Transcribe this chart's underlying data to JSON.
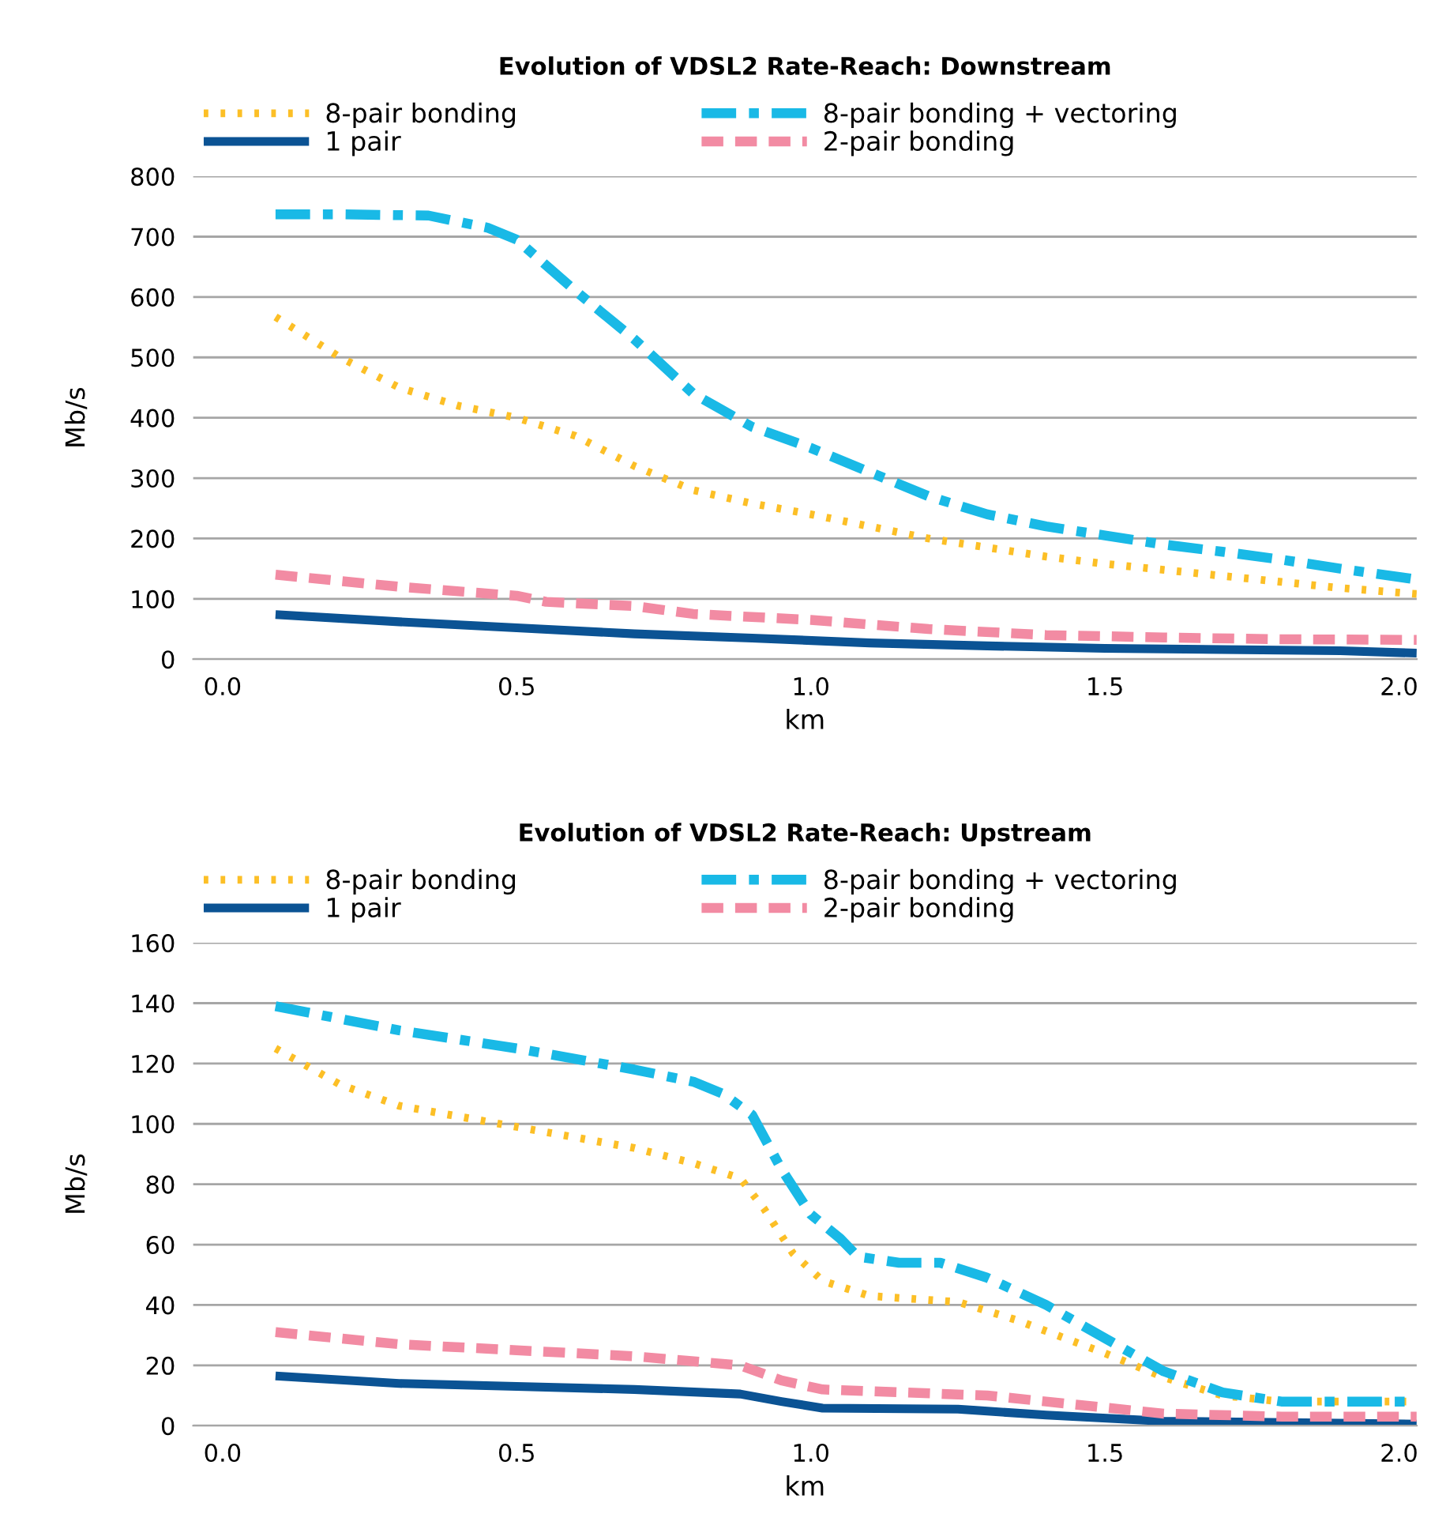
{
  "chart_data": [
    {
      "type": "line",
      "title": "Evolution of VDSL2 Rate-Reach: Downstream",
      "xlabel": "km",
      "ylabel": "Mb/s",
      "xlim": [
        -0.05,
        2.03
      ],
      "xticks": [
        {
          "value": 0,
          "label": "0.0"
        },
        {
          "value": 0.5,
          "label": "0.5"
        },
        {
          "value": 1,
          "label": "1.0"
        },
        {
          "value": 1.5,
          "label": "1.5"
        },
        {
          "value": 2,
          "label": "2.0"
        }
      ],
      "ylim": [
        0,
        800
      ],
      "yticks": [
        0,
        100,
        200,
        300,
        400,
        500,
        600,
        700,
        800
      ],
      "grid": "y",
      "legend": "top",
      "series": [
        {
          "name": "8-pair bonding",
          "color": "#fcbf26",
          "line_style": "dotted",
          "x": [
            0.09,
            0.2,
            0.3,
            0.4,
            0.5,
            0.6,
            0.7,
            0.8,
            0.9,
            1.0,
            1.1,
            1.2,
            1.3,
            1.4,
            1.5,
            1.6,
            1.7,
            1.8,
            1.9,
            2.03
          ],
          "values": [
            567,
            500,
            450,
            420,
            400,
            370,
            320,
            280,
            258,
            240,
            220,
            200,
            185,
            170,
            158,
            148,
            138,
            128,
            118,
            108
          ]
        },
        {
          "name": "8-pair bonding + vectoring",
          "color": "#19b9e6",
          "line_style": "dashdot",
          "x": [
            0.09,
            0.2,
            0.35,
            0.45,
            0.5,
            0.6,
            0.7,
            0.8,
            0.9,
            1.0,
            1.1,
            1.2,
            1.3,
            1.4,
            1.5,
            1.6,
            1.7,
            1.8,
            1.9,
            2.03
          ],
          "values": [
            737,
            737,
            735,
            715,
            695,
            610,
            530,
            440,
            385,
            350,
            310,
            270,
            240,
            220,
            205,
            190,
            178,
            165,
            150,
            132
          ]
        },
        {
          "name": "1 pair",
          "color": "#0b5394",
          "line_style": "solid",
          "x": [
            0.09,
            0.3,
            0.5,
            0.7,
            0.9,
            1.1,
            1.3,
            1.5,
            1.7,
            1.9,
            2.03
          ],
          "values": [
            74,
            62,
            52,
            42,
            35,
            27,
            22,
            18,
            16,
            14,
            10
          ]
        },
        {
          "name": "2-pair bonding",
          "color": "#f28ba3",
          "line_style": "dashed",
          "x": [
            0.09,
            0.3,
            0.5,
            0.55,
            0.7,
            0.8,
            1.0,
            1.2,
            1.4,
            1.6,
            1.8,
            2.03
          ],
          "values": [
            140,
            120,
            105,
            95,
            88,
            75,
            65,
            50,
            40,
            36,
            33,
            32
          ]
        }
      ]
    },
    {
      "type": "line",
      "title": "Evolution of VDSL2 Rate-Reach: Upstream",
      "xlabel": "km",
      "ylabel": "Mb/s",
      "xlim": [
        -0.05,
        2.03
      ],
      "xticks": [
        {
          "value": 0,
          "label": "0.0"
        },
        {
          "value": 0.5,
          "label": "0.5"
        },
        {
          "value": 1,
          "label": "1.0"
        },
        {
          "value": 1.5,
          "label": "1.5"
        },
        {
          "value": 2,
          "label": "2.0"
        }
      ],
      "ylim": [
        0,
        160
      ],
      "yticks": [
        0,
        20,
        40,
        60,
        80,
        100,
        120,
        140,
        160
      ],
      "grid": "y",
      "legend": "top",
      "series": [
        {
          "name": "8-pair bonding",
          "color": "#fcbf26",
          "line_style": "dotted",
          "x": [
            0.09,
            0.2,
            0.3,
            0.5,
            0.7,
            0.8,
            0.88,
            0.92,
            0.97,
            1.02,
            1.1,
            1.25,
            1.35,
            1.5,
            1.6,
            1.7,
            1.8,
            2.03
          ],
          "values": [
            125,
            113,
            106,
            99,
            92,
            87,
            82,
            72,
            57,
            48,
            43,
            41,
            35,
            24,
            16,
            10,
            8,
            8
          ]
        },
        {
          "name": "8-pair bonding + vectoring",
          "color": "#19b9e6",
          "line_style": "dashdot",
          "x": [
            0.09,
            0.3,
            0.5,
            0.7,
            0.8,
            0.85,
            0.9,
            0.95,
            1.0,
            1.05,
            1.08,
            1.15,
            1.22,
            1.3,
            1.4,
            1.5,
            1.6,
            1.7,
            1.8,
            1.9,
            2.03
          ],
          "values": [
            139,
            131,
            125,
            118,
            114,
            110,
            103,
            85,
            70,
            62,
            56,
            54,
            54,
            49,
            40,
            29,
            18,
            11,
            8,
            8,
            8
          ]
        },
        {
          "name": "1 pair",
          "color": "#0b5394",
          "line_style": "solid",
          "x": [
            0.09,
            0.3,
            0.5,
            0.7,
            0.88,
            0.95,
            1.02,
            1.25,
            1.4,
            1.6,
            2.03
          ],
          "values": [
            16.5,
            14,
            13,
            12,
            10.5,
            8,
            5.8,
            5.5,
            3.5,
            1.5,
            0.5
          ]
        },
        {
          "name": "2-pair bonding",
          "color": "#f28ba3",
          "line_style": "dashed",
          "x": [
            0.09,
            0.3,
            0.5,
            0.7,
            0.88,
            0.95,
            1.02,
            1.3,
            1.5,
            1.6,
            1.8,
            2.03
          ],
          "values": [
            31,
            27,
            25,
            23,
            20,
            15,
            12,
            10,
            6,
            4,
            3,
            3
          ]
        }
      ]
    }
  ]
}
